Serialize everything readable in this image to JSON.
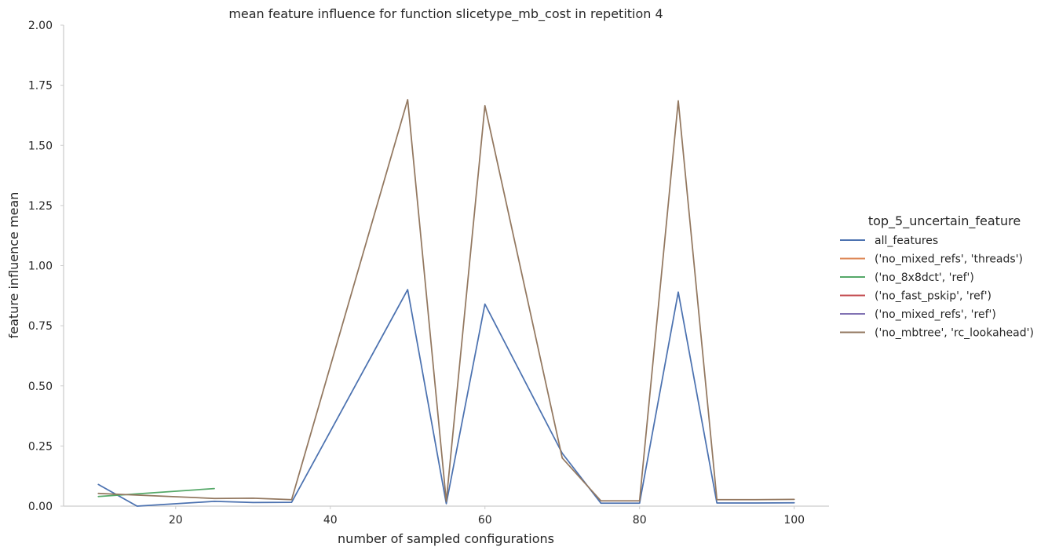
{
  "chart_data": {
    "type": "line",
    "title": "mean feature influence for function slicetype_mb_cost in repetition 4",
    "xlabel": "number of sampled configurations",
    "ylabel": "feature influence mean",
    "xlim": [
      5.5,
      104.5
    ],
    "ylim": [
      0,
      2.0
    ],
    "xticks": [
      20,
      40,
      60,
      80,
      100
    ],
    "yticks": [
      0.0,
      0.25,
      0.5,
      0.75,
      1.0,
      1.25,
      1.5,
      1.75,
      2.0
    ],
    "ytick_labels": [
      "0.00",
      "0.25",
      "0.50",
      "0.75",
      "1.00",
      "1.25",
      "1.50",
      "1.75",
      "2.00"
    ],
    "grid": false,
    "legend": {
      "title": "top_5_uncertain_feature",
      "placement": "right"
    },
    "series": [
      {
        "name": "all_features",
        "color": "#4c72b0",
        "x": [
          10,
          15,
          25,
          30,
          35,
          50,
          55,
          60,
          70,
          75,
          80,
          85,
          90,
          95,
          100
        ],
        "y": [
          0.09,
          0.0,
          0.02,
          0.015,
          0.016,
          0.9,
          0.01,
          0.84,
          0.22,
          0.012,
          0.012,
          0.89,
          0.013,
          0.013,
          0.014
        ]
      },
      {
        "name": "('no_mixed_refs', 'threads')",
        "color": "#dd8452",
        "x": [],
        "y": []
      },
      {
        "name": "('no_8x8dct', 'ref')",
        "color": "#55a868",
        "x": [
          10,
          25
        ],
        "y": [
          0.04,
          0.073
        ]
      },
      {
        "name": "('no_fast_pskip', 'ref')",
        "color": "#c44e52",
        "x": [],
        "y": []
      },
      {
        "name": "('no_mixed_refs', 'ref')",
        "color": "#8172b3",
        "x": [],
        "y": []
      },
      {
        "name": "('no_mbtree', 'rc_lookahead')",
        "color": "#937860",
        "x": [
          10,
          25,
          30,
          35,
          50,
          55,
          60,
          70,
          75,
          80,
          85,
          90,
          95,
          100
        ],
        "y": [
          0.053,
          0.032,
          0.033,
          0.027,
          1.69,
          0.02,
          1.665,
          0.2,
          0.022,
          0.022,
          1.685,
          0.027,
          0.027,
          0.028
        ]
      }
    ]
  }
}
